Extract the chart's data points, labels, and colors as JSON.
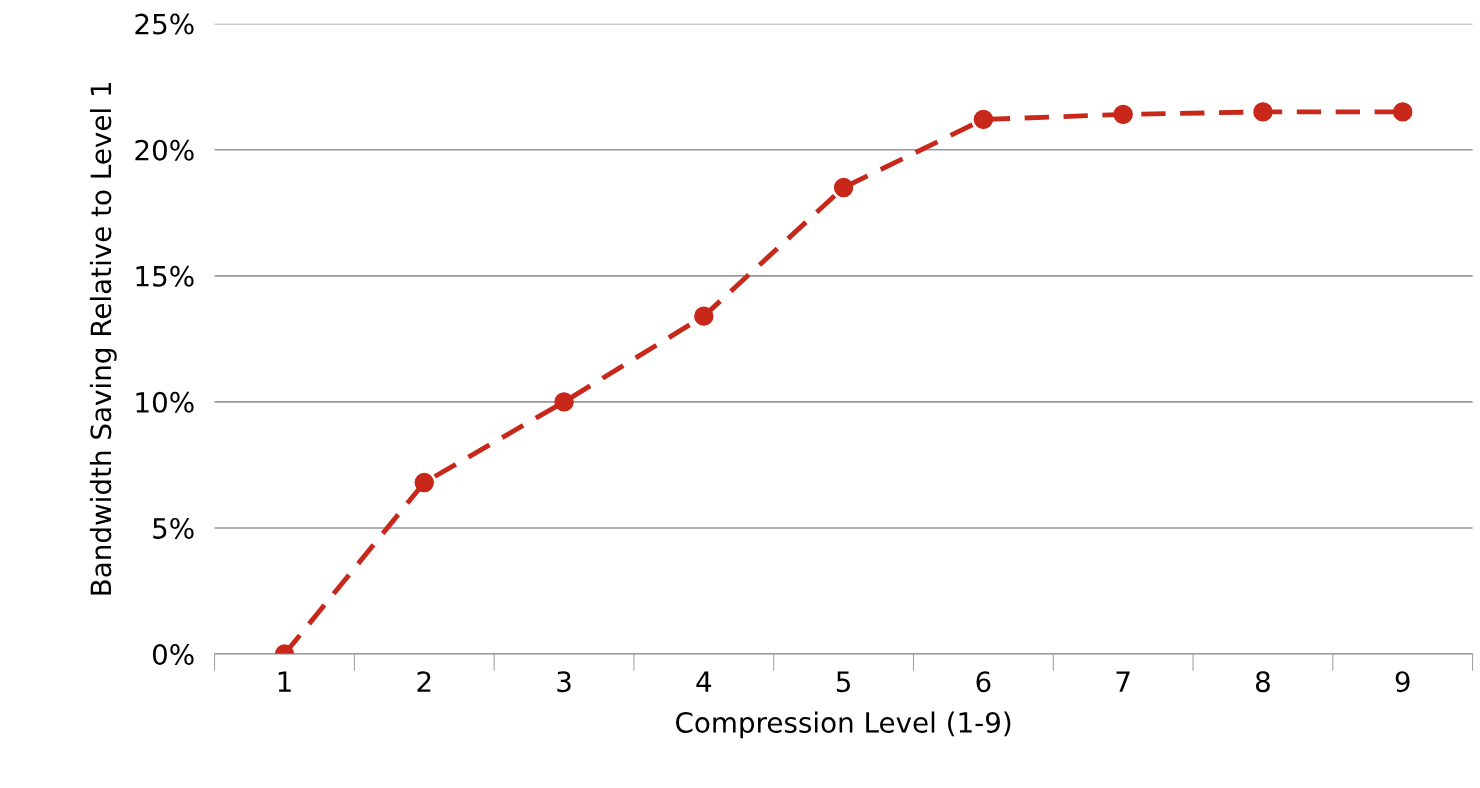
{
  "chart_data": {
    "type": "line",
    "xlabel": "Compression Level (1-9)",
    "ylabel": "Bandwidth Saving Relative to Level 1",
    "categories": [
      "1",
      "2",
      "3",
      "4",
      "5",
      "6",
      "7",
      "8",
      "9"
    ],
    "series": [
      {
        "color": "#c8281a",
        "values": [
          0,
          6.8,
          10.0,
          13.4,
          18.5,
          21.2,
          21.4,
          21.5,
          21.5
        ]
      }
    ],
    "ylim": [
      0,
      25
    ],
    "yticks": [
      {
        "value": 0,
        "label": "0%"
      },
      {
        "value": 5,
        "label": "5%"
      },
      {
        "value": 10,
        "label": "10%"
      },
      {
        "value": 15,
        "label": "15%"
      },
      {
        "value": 20,
        "label": "20%"
      },
      {
        "value": 25,
        "label": "25%"
      }
    ],
    "grid": "y",
    "marker": "circle",
    "line_style": "dashed"
  }
}
